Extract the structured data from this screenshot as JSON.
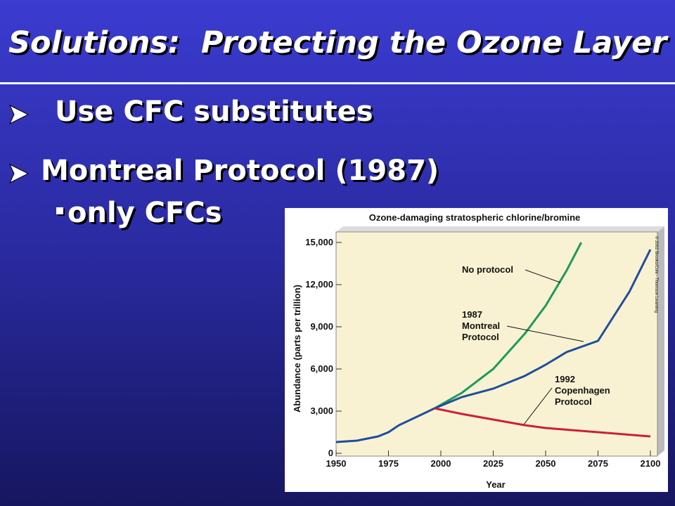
{
  "slide": {
    "title": "Solutions:  Protecting the Ozone Layer",
    "bullets": [
      "Use CFC substitutes",
      "Montreal Protocol (1987)"
    ],
    "sub_bullets": [
      "only CFCs"
    ]
  },
  "chart_data": {
    "type": "line",
    "title": "Ozone-damaging stratospheric chlorine/bromine",
    "x_label": "Year",
    "y_label": "Abundance (parts per trillion)",
    "credit": "© 2002 Brooks/Cole - Thomson Learning",
    "xlim": [
      1950,
      2100
    ],
    "xticks": [
      1950,
      1975,
      2000,
      2025,
      2050,
      2075,
      2100
    ],
    "ylim": [
      0,
      15000
    ],
    "yticks": [
      0,
      {
        "value": 3000,
        "label": "3,000"
      },
      {
        "value": 6000,
        "label": "6,000"
      },
      {
        "value": 9000,
        "label": "9,000"
      },
      {
        "value": 12000,
        "label": "12,000"
      },
      {
        "value": 15000,
        "label": "15,000"
      }
    ],
    "series": [
      {
        "name": "No protocol",
        "color": "#1e9a5a",
        "x": [
          1997,
          2010,
          2025,
          2040,
          2050,
          2060,
          2067
        ],
        "values": [
          3200,
          4300,
          6000,
          8500,
          10500,
          13000,
          15000
        ]
      },
      {
        "name": "1987 Montreal Protocol",
        "color": "#1f4e9c",
        "x": [
          1950,
          1960,
          1970,
          1975,
          1980,
          1990,
          1997,
          2010,
          2025,
          2040,
          2050,
          2060,
          2075,
          2090,
          2100
        ],
        "values": [
          800,
          900,
          1200,
          1500,
          2000,
          2700,
          3200,
          4000,
          4600,
          5500,
          6300,
          7200,
          8000,
          11500,
          14500
        ]
      },
      {
        "name": "1992 Copenhagen Protocol",
        "color": "#cc1f3a",
        "x": [
          1997,
          2010,
          2025,
          2040,
          2050,
          2075,
          2100
        ],
        "values": [
          3200,
          2800,
          2400,
          2000,
          1800,
          1500,
          1200
        ]
      }
    ]
  }
}
